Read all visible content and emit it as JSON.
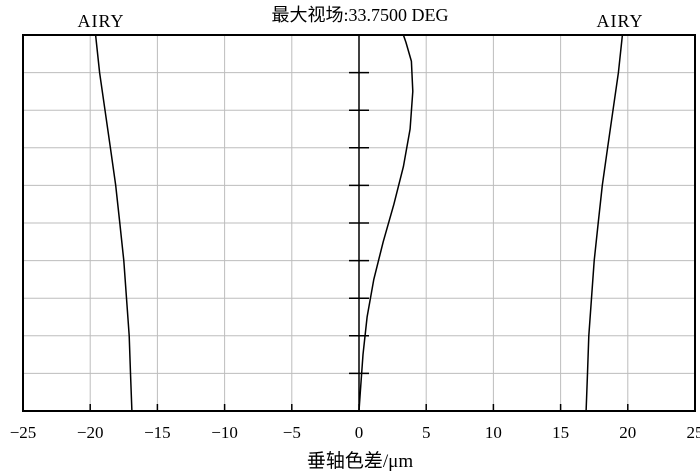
{
  "chart_data": {
    "type": "line",
    "title": "最大视场:33.7500 DEG",
    "xlabel": "垂轴色差/μm",
    "ylabel": "",
    "xlim": [
      -25,
      25
    ],
    "ylim": [
      0,
      1
    ],
    "x_ticks": [
      -25,
      -20,
      -15,
      -10,
      -5,
      0,
      5,
      10,
      15,
      20,
      25
    ],
    "x_tick_labels": [
      "−25",
      "−20",
      "−15",
      "−10",
      "−5",
      "0",
      "5",
      "10",
      "15",
      "20",
      "25"
    ],
    "grid": true,
    "airy_label_left": "AIRY",
    "airy_label_right": "AIRY",
    "series": [
      {
        "role": "airy-left",
        "points": [
          [
            -16.9,
            0
          ],
          [
            -17.0,
            0.1
          ],
          [
            -17.1,
            0.2
          ],
          [
            -17.3,
            0.3
          ],
          [
            -17.5,
            0.4
          ],
          [
            -17.8,
            0.5
          ],
          [
            -18.1,
            0.6
          ],
          [
            -18.5,
            0.7
          ],
          [
            -18.9,
            0.8
          ],
          [
            -19.3,
            0.9
          ],
          [
            -19.6,
            1.0
          ]
        ]
      },
      {
        "role": "airy-right",
        "points": [
          [
            16.9,
            0
          ],
          [
            17.0,
            0.1
          ],
          [
            17.1,
            0.2
          ],
          [
            17.3,
            0.3
          ],
          [
            17.5,
            0.4
          ],
          [
            17.8,
            0.5
          ],
          [
            18.1,
            0.6
          ],
          [
            18.5,
            0.7
          ],
          [
            18.9,
            0.8
          ],
          [
            19.3,
            0.9
          ],
          [
            19.6,
            1.0
          ]
        ]
      },
      {
        "role": "lateral-color",
        "points": [
          [
            0,
            0
          ],
          [
            0.1,
            0.05
          ],
          [
            0.3,
            0.15
          ],
          [
            0.6,
            0.25
          ],
          [
            1.1,
            0.35
          ],
          [
            1.8,
            0.45
          ],
          [
            2.6,
            0.55
          ],
          [
            3.3,
            0.65
          ],
          [
            3.8,
            0.75
          ],
          [
            4.0,
            0.85
          ],
          [
            3.9,
            0.93
          ],
          [
            3.5,
            0.98
          ],
          [
            3.3,
            1.0
          ]
        ]
      }
    ],
    "axis_ticks_at_y": [
      0.1,
      0.2,
      0.3,
      0.4,
      0.5,
      0.6,
      0.7,
      0.8,
      0.9
    ]
  }
}
